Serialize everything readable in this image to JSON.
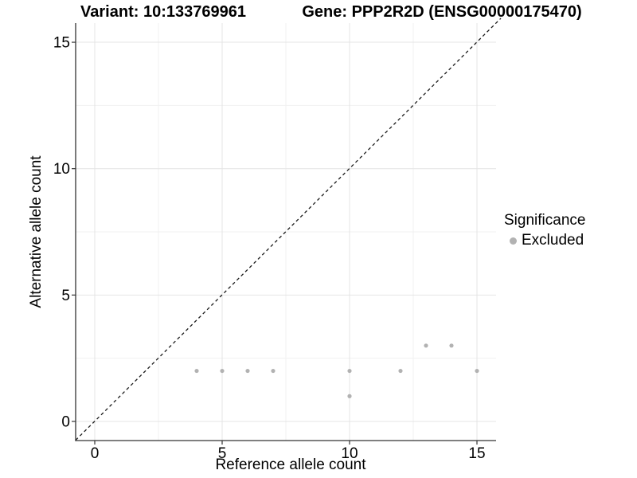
{
  "titles": {
    "left": "Variant: 10:133769961",
    "right": "Gene: PPP2R2D (ENSG00000175470)"
  },
  "legend": {
    "title": "Significance",
    "items": [
      {
        "label": "Excluded",
        "color": "#b2b2b2"
      }
    ]
  },
  "chart_data": {
    "type": "scatter",
    "title": "Variant: 10:133769961 / Gene: PPP2R2D (ENSG00000175470)",
    "xlabel": "Reference allele count",
    "ylabel": "Alternative allele count",
    "xlim": [
      -0.75,
      15.75
    ],
    "ylim": [
      -0.75,
      15.75
    ],
    "x_ticks": [
      0,
      5,
      10,
      15
    ],
    "y_ticks": [
      0,
      5,
      10,
      15
    ],
    "x_minor_ticks": [
      2.5,
      7.5,
      12.5
    ],
    "y_minor_ticks": [
      2.5,
      7.5,
      12.5
    ],
    "grid": true,
    "legend_position": "right",
    "identity_line": {
      "type": "y=x",
      "style": "dashed",
      "color": "#1a1a1a"
    },
    "series": [
      {
        "name": "Excluded",
        "color": "#b2b2b2",
        "points": [
          {
            "x": 4,
            "y": 2
          },
          {
            "x": 5,
            "y": 2
          },
          {
            "x": 6,
            "y": 2
          },
          {
            "x": 7,
            "y": 2
          },
          {
            "x": 10,
            "y": 1
          },
          {
            "x": 10,
            "y": 2
          },
          {
            "x": 12,
            "y": 2
          },
          {
            "x": 13,
            "y": 3
          },
          {
            "x": 14,
            "y": 3
          },
          {
            "x": 15,
            "y": 2
          }
        ]
      }
    ],
    "colors": {
      "major_grid": "#e4e4e4",
      "minor_grid": "#f1f1f1",
      "axis_line": "#333333",
      "tick_label": "#000000",
      "point": "#b2b2b2"
    }
  }
}
